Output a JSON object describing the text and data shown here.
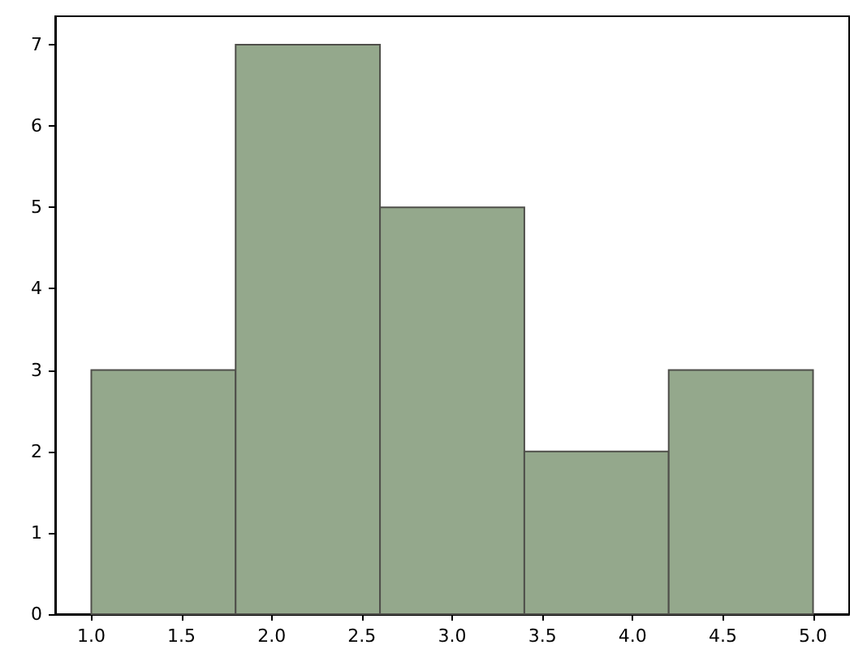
{
  "chart_data": {
    "type": "histogram",
    "bins": [
      1.0,
      1.8,
      2.6,
      3.4,
      4.2,
      5.0
    ],
    "values": [
      3,
      7,
      5,
      2,
      3
    ],
    "color": "#94a88c",
    "xlim": [
      0.8,
      5.2
    ],
    "xticks": [
      {
        "value": 1,
        "label": "1.0"
      },
      {
        "value": 1.5,
        "label": "1.5"
      },
      {
        "value": 2,
        "label": "2.0"
      },
      {
        "value": 2.5,
        "label": "2.5"
      },
      {
        "value": 3,
        "label": "3.0"
      },
      {
        "value": 3.5,
        "label": "3.5"
      },
      {
        "value": 4,
        "label": "4.0"
      },
      {
        "value": 4.5,
        "label": "4.5"
      },
      {
        "value": 5,
        "label": "5.0"
      }
    ],
    "ylim": [
      0,
      7.35
    ],
    "yticks": [
      0,
      1,
      2,
      3,
      4,
      5,
      6,
      7
    ],
    "grid": false
  }
}
